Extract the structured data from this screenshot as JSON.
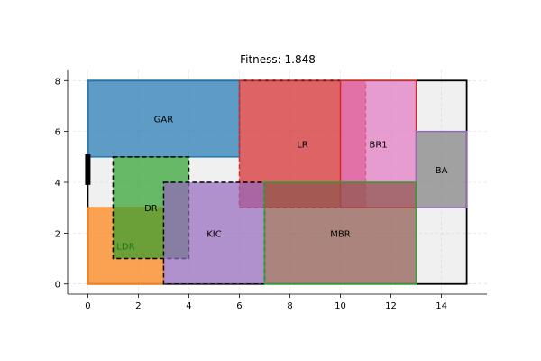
{
  "chart_data": {
    "type": "floorplan",
    "title": "Fitness: 1.848",
    "xlim": [
      -0.8,
      15.8
    ],
    "ylim": [
      -0.4,
      8.4
    ],
    "xticks": [
      0,
      2,
      4,
      6,
      8,
      10,
      12,
      14
    ],
    "yticks": [
      0,
      2,
      4,
      6,
      8
    ],
    "grid": true,
    "boundary": {
      "x": 0,
      "y": 0,
      "w": 15,
      "h": 8
    },
    "door": {
      "x": 0,
      "y1": 3.9,
      "y2": 5.1
    },
    "rooms": [
      {
        "name": "GAR",
        "x": 0,
        "y": 5,
        "w": 6,
        "h": 3,
        "fill": "#1f77b4",
        "stroke": "#1f77b4",
        "dashed": false,
        "label_x": 3,
        "label_y": 6.5
      },
      {
        "name": "LR",
        "x": 6,
        "y": 3,
        "w": 5,
        "h": 5,
        "fill": "#d62728",
        "stroke": "#d62728",
        "dashed": true,
        "label_x": 8.5,
        "label_y": 5.5
      },
      {
        "name": "BR1",
        "x": 10,
        "y": 3,
        "w": 3,
        "h": 5,
        "fill": "#e377c2",
        "stroke": "#d62728",
        "dashed": false,
        "label_x": 11.5,
        "label_y": 5.5
      },
      {
        "name": "BA",
        "x": 13,
        "y": 3,
        "w": 2,
        "h": 3,
        "fill": "#7f7f7f",
        "stroke": "#9467bd",
        "dashed": false,
        "label_x": 14,
        "label_y": 4.5
      },
      {
        "name": "LDR",
        "x": 0,
        "y": 0,
        "w": 3,
        "h": 3,
        "fill": "#ff7f0e",
        "stroke": "#ff7f0e",
        "dashed": false,
        "label_x": 1.5,
        "label_y": 1.5
      },
      {
        "name": "DR",
        "x": 1,
        "y": 1,
        "w": 3,
        "h": 4,
        "fill": "#2ca02c",
        "stroke": "#000000",
        "dashed": true,
        "label_x": 2.5,
        "label_y": 3
      },
      {
        "name": "KIC",
        "x": 3,
        "y": 0,
        "w": 4,
        "h": 4,
        "fill": "#9467bd",
        "stroke": "#000000",
        "dashed": true,
        "label_x": 5,
        "label_y": 2
      },
      {
        "name": "MBR",
        "x": 7,
        "y": 0,
        "w": 6,
        "h": 4,
        "fill": "#8c564b",
        "stroke": "#2ca02c",
        "dashed": false,
        "label_x": 10,
        "label_y": 2
      }
    ]
  }
}
